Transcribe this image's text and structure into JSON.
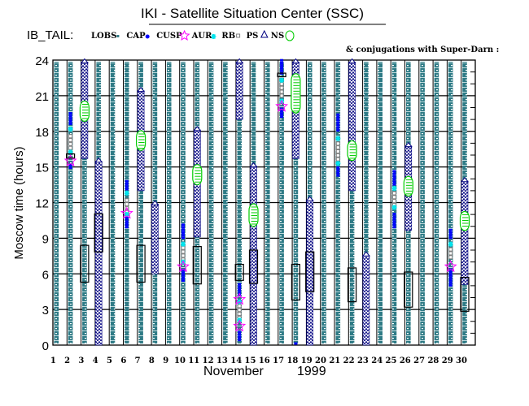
{
  "title": "IKI - Satellite Situation Center (SSC)",
  "legend": {
    "prefix": "IB_TAIL:",
    "items": [
      {
        "label": "LOBS",
        "symbol": "teal-square",
        "color": "#2f7b86"
      },
      {
        "label": "CAP",
        "symbol": "blue-dot",
        "color": "#0000ff"
      },
      {
        "label": "CUSP",
        "symbol": "magenta-star",
        "color": "#ff00ff"
      },
      {
        "label": "AUR",
        "symbol": "cyan-asterisk",
        "color": "#00e5ee"
      },
      {
        "label": "RB",
        "symbol": "grey-square",
        "color": "#808080"
      },
      {
        "label": "PS",
        "symbol": "navy-triangle",
        "color": "#000080"
      },
      {
        "label": "NS",
        "symbol": "green-circle",
        "color": "#00cc00"
      }
    ],
    "conjugation_note": "& conjugations with Super-Darn :"
  },
  "chart_data": {
    "type": "timeline",
    "title": "IKI - Satellite Situation Center (SSC)",
    "xlabel": "November",
    "xlabel_year": "1999",
    "ylabel": "Moscow time (hours)",
    "ylim": [
      0,
      24
    ],
    "yticks": [
      "0",
      "3",
      "6",
      "9",
      "12",
      "15",
      "18",
      "21",
      "24"
    ],
    "xticks": [
      "1",
      "2",
      "3",
      "4",
      "5",
      "6",
      "7",
      "8",
      "9",
      "10",
      "11",
      "12",
      "13",
      "14",
      "15",
      "16",
      "17",
      "18",
      "19",
      "20",
      "21",
      "22",
      "23",
      "24",
      "25",
      "26",
      "27",
      "28",
      "29",
      "30"
    ],
    "grid": true,
    "days": [
      {
        "day": 1
      },
      {
        "day": 2,
        "cap": [
          [
            18.6,
            19.65
          ],
          [
            14.9,
            15.3
          ]
        ],
        "aur": [
          18.2,
          16.25
        ],
        "rb": [
          [
            16.6,
            17.7
          ]
        ],
        "cusp": [
          15.5
        ],
        "conj": [
          [
            15.75,
            16.1
          ]
        ]
      },
      {
        "day": 3,
        "ps": [
          [
            15.7,
            24.1
          ]
        ],
        "ns": [
          [
            18.85,
            20.55
          ]
        ],
        "conj": [
          [
            5.3,
            8.4
          ]
        ]
      },
      {
        "day": 4,
        "ps": [
          [
            0,
            15.75
          ]
        ],
        "conj": [
          [
            7.85,
            11.05
          ]
        ]
      },
      {
        "day": 5
      },
      {
        "day": 6,
        "cap": [
          [
            13.1,
            13.9
          ],
          [
            9.9,
            10.9
          ]
        ],
        "aur": [
          12.8,
          11.0
        ],
        "rb": [
          [
            11.2,
            12.5
          ]
        ],
        "cusp": [
          11.1
        ]
      },
      {
        "day": 7,
        "ps": [
          [
            13.0,
            21.7
          ]
        ],
        "ns": [
          [
            16.4,
            18.05
          ]
        ],
        "conj": [
          [
            5.3,
            8.4
          ]
        ]
      },
      {
        "day": 8,
        "ps": [
          [
            6.0,
            12.15
          ]
        ]
      },
      {
        "day": 9
      },
      {
        "day": 10,
        "cap": [
          [
            9.0,
            10.1
          ],
          [
            5.4,
            6.4
          ]
        ],
        "aur": [
          8.5,
          7.0
        ],
        "rb": [
          [
            7.2,
            8.3
          ]
        ],
        "cusp": [
          6.6
        ]
      },
      {
        "day": 11,
        "ps": [
          [
            9.1,
            18.4
          ]
        ],
        "ns": [
          [
            13.5,
            15.2
          ]
        ],
        "conj": [
          [
            5.15,
            8.3
          ]
        ]
      },
      {
        "day": 12
      },
      {
        "day": 13
      },
      {
        "day": 14,
        "ps": [
          [
            19.0,
            24.1
          ]
        ],
        "cap": [
          [
            4.2,
            5.1
          ],
          [
            0.4,
            1.25
          ]
        ],
        "aur": [
          3.65,
          2.1
        ],
        "rb": [
          [
            2.3,
            3.4
          ]
        ],
        "cusp": [
          3.85,
          1.6
        ],
        "conj": [
          [
            5.45,
            6.8
          ]
        ]
      },
      {
        "day": 15,
        "ps": [
          [
            0,
            15.35
          ]
        ],
        "ns": [
          [
            10.0,
            11.9
          ]
        ],
        "conj": [
          [
            5.2,
            8.0
          ]
        ]
      },
      {
        "day": 16
      },
      {
        "day": 17,
        "cap": [
          [
            22.85,
            24.0
          ],
          [
            19.2,
            19.85
          ]
        ],
        "aur": [
          22.3,
          20.55
        ],
        "rb": [
          [
            21.0,
            22.1
          ]
        ],
        "cusp": [
          20.1
        ],
        "conj": [
          [
            22.6,
            22.9
          ]
        ]
      },
      {
        "day": 18,
        "ps": [
          [
            15.7,
            24.1
          ]
        ],
        "ns": [
          [
            19.55,
            22.85
          ]
        ],
        "cap": [
          [
            0.1,
            0.3
          ]
        ],
        "conj": [
          [
            3.8,
            6.8
          ]
        ]
      },
      {
        "day": 19,
        "ps": [
          [
            0,
            12.5
          ]
        ],
        "conj": [
          [
            4.5,
            7.85
          ]
        ]
      },
      {
        "day": 20
      },
      {
        "day": 21,
        "cap": [
          [
            18.05,
            19.4
          ],
          [
            14.25,
            15.0
          ]
        ],
        "aur": [
          17.4,
          15.3
        ],
        "rb": [
          [
            15.65,
            17.2
          ]
        ]
      },
      {
        "day": 22,
        "ps": [
          [
            13.0,
            24.1
          ]
        ],
        "ns": [
          [
            15.55,
            17.2
          ]
        ],
        "conj": [
          [
            3.65,
            6.5
          ]
        ]
      },
      {
        "day": 23,
        "ps": [
          [
            0,
            7.85
          ]
        ]
      },
      {
        "day": 24
      },
      {
        "day": 25,
        "cap": [
          [
            13.5,
            14.75
          ],
          [
            9.9,
            11.2
          ]
        ],
        "aur": [
          13.2,
          11.6
        ],
        "rb": [
          [
            11.8,
            13.0
          ]
        ]
      },
      {
        "day": 26,
        "ps": [
          [
            9.65,
            17.05
          ]
        ],
        "ns": [
          [
            12.55,
            14.2
          ]
        ],
        "conj": [
          [
            3.2,
            6.15
          ]
        ]
      },
      {
        "day": 27
      },
      {
        "day": 28
      },
      {
        "day": 29,
        "cap": [
          [
            9.0,
            9.8
          ],
          [
            5.0,
            6.4
          ]
        ],
        "aur": [
          8.5
        ],
        "rb": [
          [
            7.4,
            8.2
          ]
        ],
        "cusp": [
          6.6
        ]
      },
      {
        "day": 30,
        "ps": [
          [
            5.1,
            14.1
          ]
        ],
        "ns": [
          [
            9.65,
            11.25
          ]
        ],
        "conj": [
          [
            2.85,
            5.7
          ]
        ]
      }
    ]
  }
}
